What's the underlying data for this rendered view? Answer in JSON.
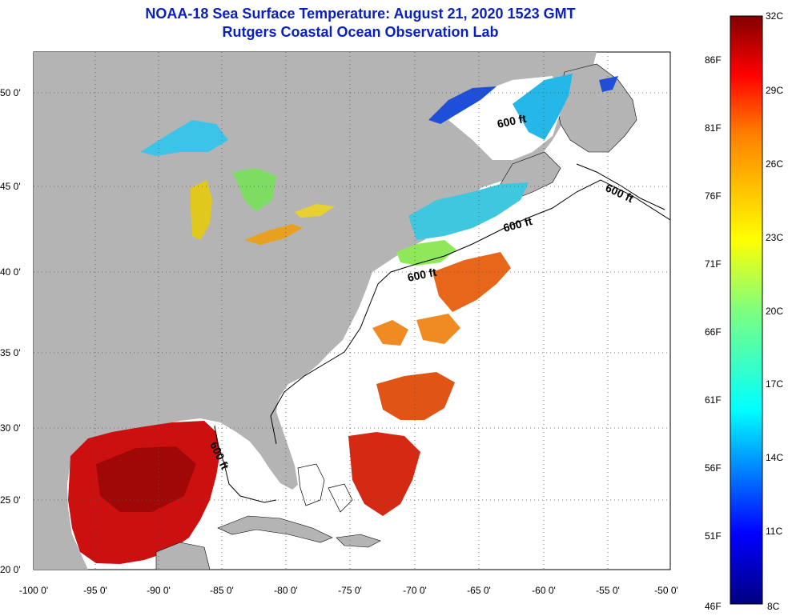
{
  "header": {
    "title_line1": "NOAA-18 Sea Surface Temperature:  August 21, 2020 1523 GMT",
    "title_line2": "Rutgers Coastal Ocean Observation Lab"
  },
  "axes": {
    "lat_ticks": [
      "50 0'",
      "45 0'",
      "40 0'",
      "35 0'",
      "30 0'",
      "25 0'",
      "20 0'"
    ],
    "lon_ticks": [
      "-100 0'",
      "-95 0'",
      "-90 0'",
      "-85 0'",
      "-80 0'",
      "-75 0'",
      "-70 0'",
      "-65 0'",
      "-60 0'",
      "-55 0'",
      "-50 0'"
    ]
  },
  "contour_labels": [
    "600 ft",
    "600 ft",
    "600 ft",
    "600 ft",
    "600 ft"
  ],
  "colorbar": {
    "fahrenheit": [
      "86F",
      "81F",
      "76F",
      "71F",
      "66F",
      "61F",
      "56F",
      "51F",
      "46F"
    ],
    "celsius": [
      "32C",
      "29C",
      "26C",
      "23C",
      "20C",
      "17C",
      "14C",
      "11C",
      "8C"
    ]
  },
  "colors": {
    "land": "#b4b4b4",
    "ocean_nodata": "#ffffff",
    "title": "#0a1fbf"
  }
}
